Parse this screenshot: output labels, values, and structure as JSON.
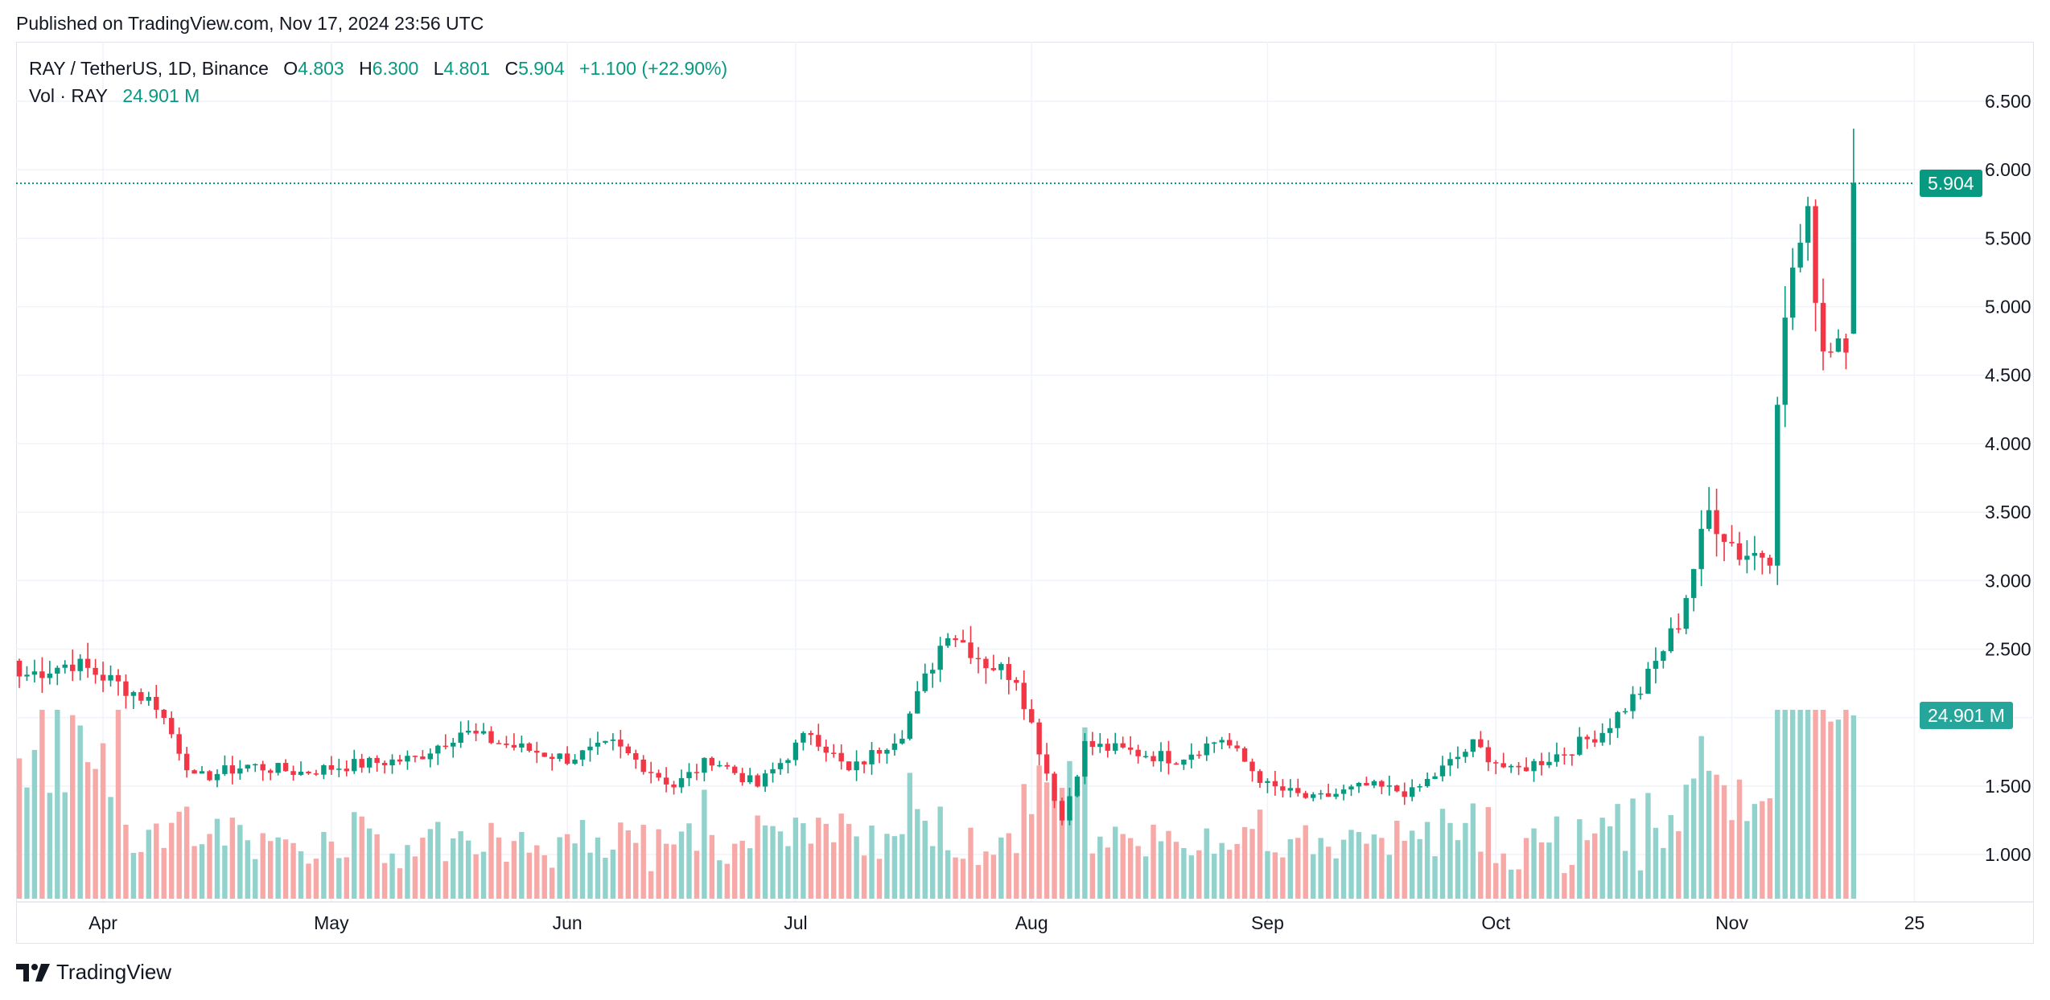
{
  "header": {
    "published": "Published on TradingView.com, Nov 17, 2024 23:56 UTC"
  },
  "legend": {
    "symbol": "RAY / TetherUS, 1D, Binance",
    "o_label": "O",
    "o": "4.803",
    "h_label": "H",
    "h": "6.300",
    "l_label": "L",
    "l": "4.801",
    "c_label": "C",
    "c": "5.904",
    "change": "+1.100 (+22.90%)",
    "vol_label": "Vol · RAY",
    "vol": "24.901 M"
  },
  "tags": {
    "last_price": "5.904",
    "last_volume": "24.901 M"
  },
  "footer": {
    "brand": "TradingView"
  },
  "colors": {
    "up": "#089981",
    "down": "#f23645",
    "vol_up": "#92d2cc",
    "vol_down": "#f7a9a7",
    "grid": "#f0f3fa"
  },
  "chart_data": {
    "type": "candlestick",
    "symbol": "RAY / TetherUS",
    "interval": "1D",
    "exchange": "Binance",
    "date_range": [
      "2024-03-21",
      "2024-11-17"
    ],
    "y_ticks": [
      "6.500",
      "6.000",
      "5.500",
      "5.000",
      "4.500",
      "4.000",
      "3.500",
      "3.000",
      "2.500",
      "1.500",
      "1.000"
    ],
    "x_ticks": [
      "Apr",
      "May",
      "Jun",
      "Jul",
      "Aug",
      "Sep",
      "Oct",
      "Nov",
      "25"
    ],
    "ylim": [
      0.7,
      6.8
    ],
    "grid": true,
    "key_closes": [
      [
        "2024-03-21",
        2.3
      ],
      [
        "2024-03-28",
        2.4
      ],
      [
        "2024-04-01",
        2.3
      ],
      [
        "2024-04-08",
        2.1
      ],
      [
        "2024-04-13",
        1.55
      ],
      [
        "2024-04-20",
        1.65
      ],
      [
        "2024-04-27",
        1.6
      ],
      [
        "2024-05-03",
        1.65
      ],
      [
        "2024-05-12",
        1.7
      ],
      [
        "2024-05-18",
        1.9
      ],
      [
        "2024-05-24",
        1.8
      ],
      [
        "2024-06-01",
        1.7
      ],
      [
        "2024-06-07",
        1.8
      ],
      [
        "2024-06-15",
        1.5
      ],
      [
        "2024-06-20",
        1.7
      ],
      [
        "2024-06-26",
        1.5
      ],
      [
        "2024-07-03",
        1.9
      ],
      [
        "2024-07-08",
        1.6
      ],
      [
        "2024-07-15",
        1.9
      ],
      [
        "2024-07-21",
        2.65
      ],
      [
        "2024-07-26",
        2.4
      ],
      [
        "2024-07-30",
        2.3
      ],
      [
        "2024-08-05",
        1.25
      ],
      [
        "2024-08-08",
        1.8
      ],
      [
        "2024-08-14",
        1.75
      ],
      [
        "2024-08-20",
        1.7
      ],
      [
        "2024-08-26",
        1.85
      ],
      [
        "2024-09-01",
        1.5
      ],
      [
        "2024-09-07",
        1.4
      ],
      [
        "2024-09-14",
        1.5
      ],
      [
        "2024-09-20",
        1.45
      ],
      [
        "2024-09-28",
        1.8
      ],
      [
        "2024-10-03",
        1.6
      ],
      [
        "2024-10-10",
        1.75
      ],
      [
        "2024-10-15",
        1.9
      ],
      [
        "2024-10-20",
        2.2
      ],
      [
        "2024-10-25",
        2.7
      ],
      [
        "2024-10-29",
        3.5
      ],
      [
        "2024-11-02",
        3.2
      ],
      [
        "2024-11-06",
        3.2
      ],
      [
        "2024-11-07",
        4.4
      ],
      [
        "2024-11-09",
        5.3
      ],
      [
        "2024-11-11",
        5.6
      ],
      [
        "2024-11-13",
        4.7
      ],
      [
        "2024-11-15",
        4.8
      ],
      [
        "2024-11-16",
        4.8
      ],
      [
        "2024-11-17",
        5.904
      ]
    ],
    "last_candle": {
      "date": "2024-11-17",
      "open": 4.803,
      "high": 6.3,
      "low": 4.801,
      "close": 5.904
    },
    "last_volume_m": 24.901
  }
}
